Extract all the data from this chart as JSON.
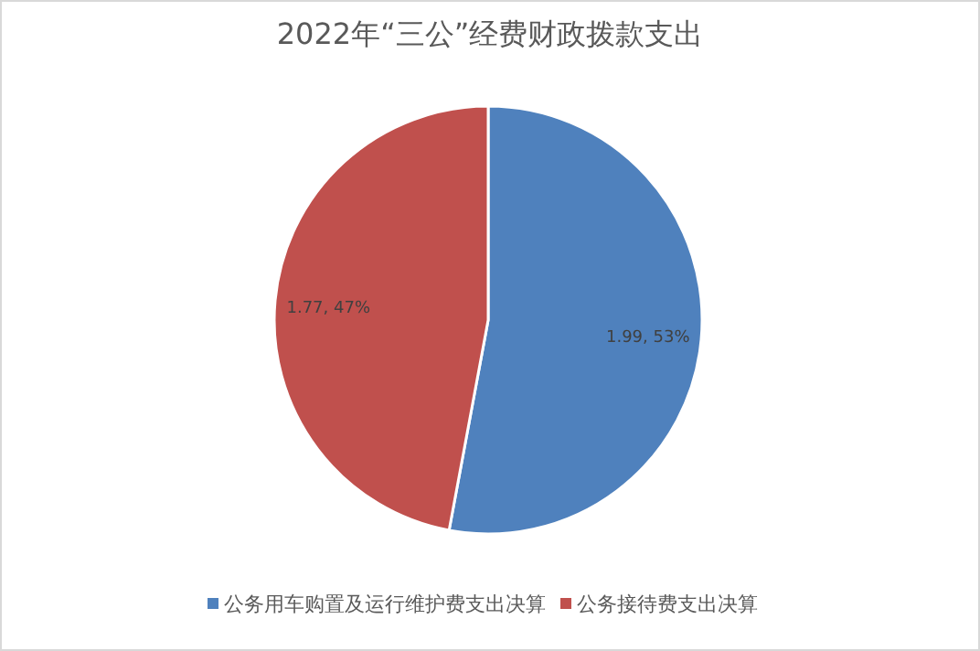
{
  "chart_data": {
    "type": "pie",
    "title": "2022年“三公”经费财政拨款支出",
    "categories": [
      "公务用车购置及运行维护费支出决算",
      "公务接待费支出决算"
    ],
    "values": [
      1.99,
      1.77
    ],
    "colors": [
      "#4f81bd",
      "#c0504d"
    ],
    "value_labels": [
      "1.99, 53%",
      "1.77, 47%"
    ],
    "legend": "bottom"
  }
}
